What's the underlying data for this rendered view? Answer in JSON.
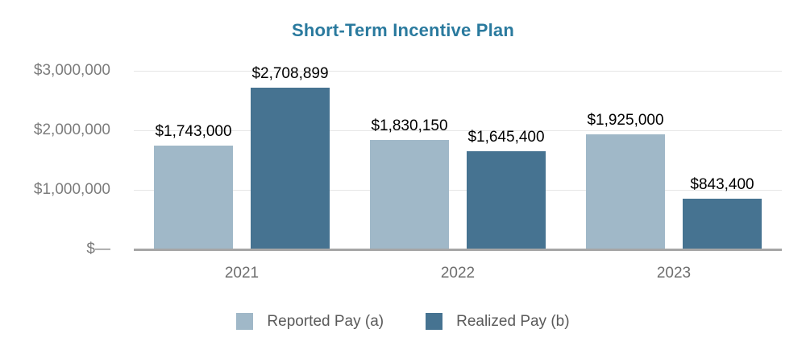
{
  "chart_data": {
    "type": "bar",
    "title": "Short-Term Incentive Plan",
    "categories": [
      "2021",
      "2022",
      "2023"
    ],
    "series": [
      {
        "name": "Reported Pay (a)",
        "color": "#a0b8c8",
        "values": [
          1743000,
          1830150,
          1925000
        ],
        "labels": [
          "$1,743,000",
          "$1,830,150",
          "$1,925,000"
        ]
      },
      {
        "name": "Realized Pay (b)",
        "color": "#467391",
        "values": [
          2708899,
          1645400,
          843400
        ],
        "labels": [
          "$2,708,899",
          "$1,645,400",
          "$843,400"
        ]
      }
    ],
    "y_axis": {
      "range": [
        0,
        3000000
      ],
      "ticks": [
        {
          "value": 3000000,
          "label": "$3,000,000"
        },
        {
          "value": 2000000,
          "label": "$2,000,000"
        },
        {
          "value": 1000000,
          "label": "$1,000,000"
        },
        {
          "value": 0,
          "label": "$—"
        }
      ]
    },
    "legend_position": "bottom",
    "grid": "horizontal",
    "colors": {
      "title": "#2a7a9e",
      "gridline": "#e6e6e6",
      "baseline": "#a6a6a6",
      "tick_text": "#7c7c7c",
      "category_text": "#6e6e6e",
      "legend_text": "#5a5a5a",
      "value_text": "#000000"
    }
  }
}
